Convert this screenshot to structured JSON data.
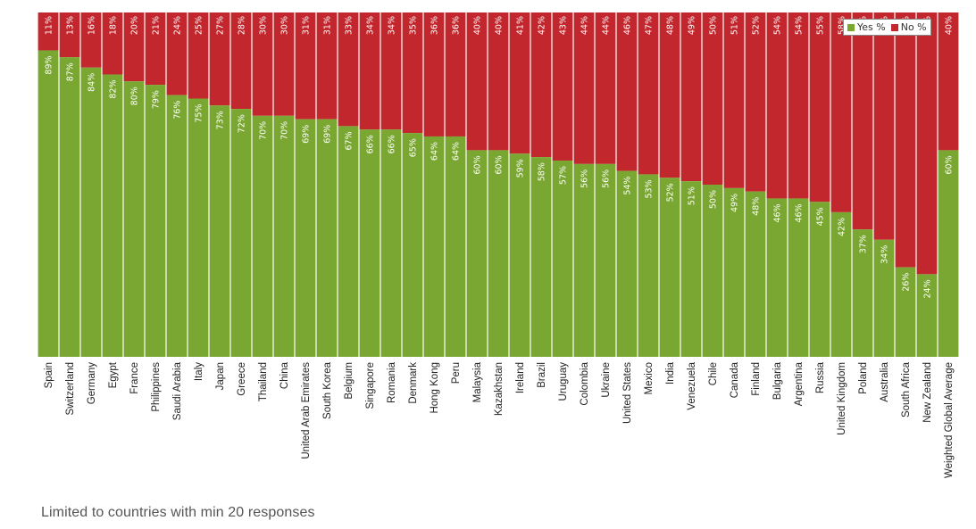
{
  "footnote": "Limited to countries with min 20 responses",
  "colors": {
    "yes": "#7aa632",
    "no": "#c1272d",
    "bar_label": "#ffffff",
    "category_label": "#222222"
  },
  "legend": {
    "yes_label": "Yes %",
    "no_label": "No %"
  },
  "chart_data": {
    "type": "bar",
    "stacked": true,
    "percent_axis": true,
    "ylim": [
      0,
      100
    ],
    "grid": false,
    "legend_position": "top-right",
    "categories": [
      "Spain",
      "Switzerland",
      "Germany",
      "Egypt",
      "France",
      "Philippines",
      "Saudi Arabia",
      "Italy",
      "Japan",
      "Greece",
      "Thailand",
      "China",
      "United Arab Emirates",
      "South Korea",
      "Belgium",
      "Singapore",
      "Romania",
      "Denmark",
      "Hong Kong",
      "Peru",
      "Malaysia",
      "Kazakhstan",
      "Ireland",
      "Brazil",
      "Uruguay",
      "Colombia",
      "Ukraine",
      "United States",
      "Mexico",
      "India",
      "Venezuela",
      "Chile",
      "Canada",
      "Finland",
      "Bulgaria",
      "Argentina",
      "Russia",
      "United Kingdom",
      "Poland",
      "Australia",
      "South Africa",
      "New Zealand",
      "Weighted Global Average"
    ],
    "series": [
      {
        "name": "Yes %",
        "values": [
          89,
          87,
          84,
          82,
          80,
          79,
          76,
          75,
          73,
          72,
          70,
          70,
          69,
          69,
          67,
          66,
          66,
          65,
          64,
          64,
          60,
          60,
          59,
          58,
          57,
          56,
          56,
          54,
          53,
          52,
          51,
          50,
          49,
          48,
          46,
          46,
          45,
          42,
          37,
          34,
          26,
          24,
          60
        ],
        "labels": [
          "89%",
          "87%",
          "84%",
          "82%",
          "80%",
          "79%",
          "76%",
          "75%",
          "73%",
          "72%",
          "70%",
          "70%",
          "69%",
          "69%",
          "67%",
          "66%",
          "66%",
          "65%",
          "64%",
          "64%",
          "60%",
          "60%",
          "59%",
          "58%",
          "57%",
          "56%",
          "56%",
          "54%",
          "53%",
          "52%",
          "51%",
          "50%",
          "49%",
          "48%",
          "46%",
          "46%",
          "45%",
          "42%",
          "37%",
          "34%",
          "26%",
          "24%",
          "60%"
        ]
      },
      {
        "name": "No %",
        "values": [
          11,
          13,
          16,
          18,
          20,
          21,
          24,
          25,
          27,
          28,
          30,
          30,
          31,
          31,
          33,
          34,
          34,
          35,
          36,
          36,
          40,
          40,
          41,
          42,
          43,
          44,
          44,
          46,
          47,
          48,
          49,
          50,
          51,
          52,
          54,
          54,
          55,
          58,
          63,
          66,
          74,
          76,
          40
        ],
        "labels": [
          "11%",
          "13%",
          "16%",
          "18%",
          "20%",
          "21%",
          "24%",
          "25%",
          "27%",
          "28%",
          "30%",
          "30%",
          "31%",
          "31%",
          "33%",
          "34%",
          "34%",
          "35%",
          "36%",
          "36%",
          "40%",
          "40%",
          "41%",
          "42%",
          "43%",
          "44%",
          "44%",
          "46%",
          "47%",
          "48%",
          "49%",
          "50%",
          "51%",
          "52%",
          "54%",
          "54%",
          "55%",
          "58%",
          "63%",
          "66%",
          "74%",
          "76%",
          "40%"
        ]
      }
    ]
  }
}
